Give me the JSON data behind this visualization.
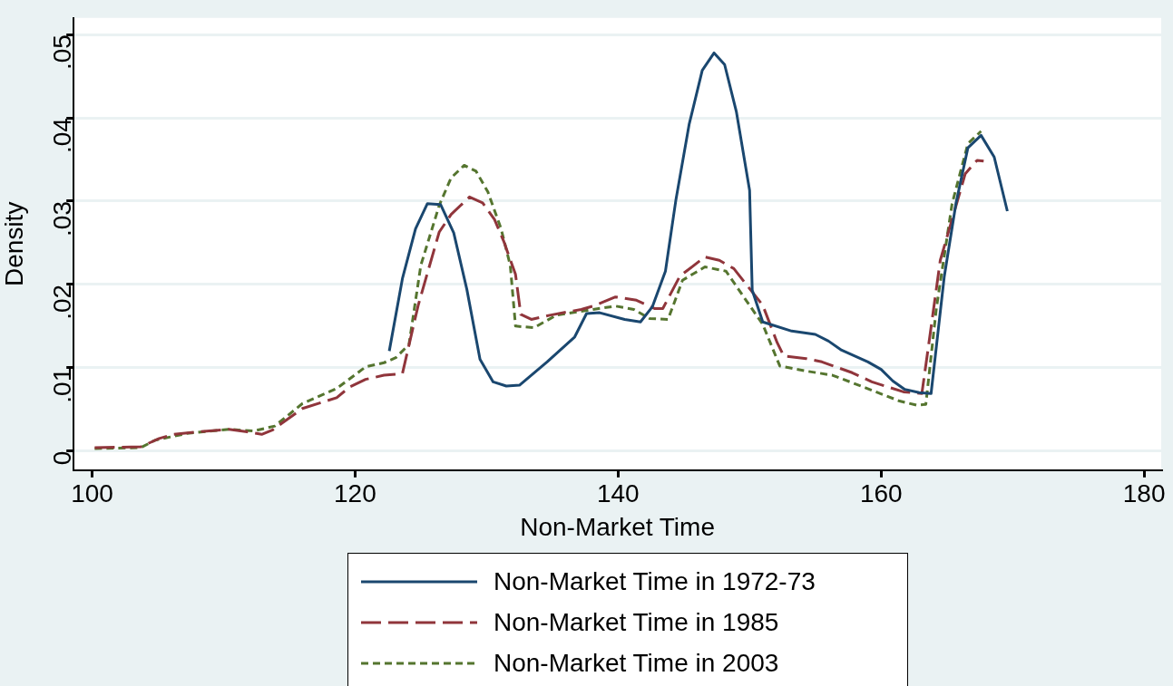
{
  "chart_data": {
    "type": "line",
    "xlabel": "Non-Market Time",
    "ylabel": "Density",
    "xlim": [
      98.6,
      181.3
    ],
    "xticks": [
      100,
      120,
      140,
      160,
      180
    ],
    "ylim": [
      -0.0023,
      0.052
    ],
    "yticks": [
      {
        "value": 0,
        "label": "0"
      },
      {
        "value": 0.01,
        "label": ".01"
      },
      {
        "value": 0.02,
        "label": ".02"
      },
      {
        "value": 0.03,
        "label": ".03"
      },
      {
        "value": 0.04,
        "label": ".04"
      },
      {
        "value": 0.05,
        "label": ".05"
      }
    ],
    "grid": "y",
    "legend": "bottom",
    "marker": "none",
    "series": [
      {
        "name": "Non-Market Time in 1972-73",
        "color": "#1a476f",
        "line_style": "solid",
        "x": [
          122.6,
          123.6,
          124.6,
          125.5,
          126.5,
          127.5,
          128.5,
          129.5,
          130.5,
          131.5,
          132.5,
          134.6,
          136.7,
          137.6,
          138.6,
          140.5,
          141.7,
          142.6,
          143.6,
          144.4,
          145.4,
          146.4,
          147.3,
          148.1,
          149.0,
          150.0,
          150.2,
          151.0,
          153.2,
          155.0,
          156.0,
          157.0,
          159.0,
          160.0,
          160.9,
          161.8,
          162.9,
          163.8,
          164.8,
          165.7,
          166.6,
          167.6,
          168.6,
          169.6
        ],
        "values": [
          0.012,
          0.0207,
          0.0267,
          0.0297,
          0.0296,
          0.0262,
          0.0194,
          0.011,
          0.0083,
          0.0078,
          0.0079,
          0.0107,
          0.0137,
          0.0165,
          0.0166,
          0.0158,
          0.0155,
          0.0173,
          0.0216,
          0.0302,
          0.0392,
          0.0457,
          0.0478,
          0.0464,
          0.0407,
          0.0313,
          0.0193,
          0.0155,
          0.0144,
          0.014,
          0.0132,
          0.0121,
          0.0107,
          0.0098,
          0.0084,
          0.0074,
          0.007,
          0.0069,
          0.0209,
          0.0298,
          0.0364,
          0.0379,
          0.0353,
          0.0288
        ]
      },
      {
        "name": "Non-Market Time in 1985",
        "color": "#90353b",
        "line_style": "dashed",
        "x": [
          100.2,
          103.7,
          105.1,
          106.2,
          108.1,
          110.4,
          111.8,
          112.9,
          113.7,
          116.0,
          118.6,
          119.6,
          120.8,
          122.2,
          123.6,
          124.8,
          126.4,
          127.3,
          128.7,
          129.7,
          130.6,
          131.3,
          132.2,
          132.6,
          133.4,
          134.8,
          137.2,
          138.1,
          139.8,
          141.4,
          142.8,
          143.4,
          144.7,
          146.6,
          147.7,
          148.8,
          151.0,
          152.1,
          152.6,
          154.3,
          155.5,
          157.8,
          159.3,
          161.7,
          163.1,
          163.7,
          164.5,
          166.4,
          167.3,
          167.8
        ],
        "values": [
          0.0004,
          0.0005,
          0.0015,
          0.002,
          0.0023,
          0.0026,
          0.0023,
          0.002,
          0.0025,
          0.0051,
          0.0064,
          0.0077,
          0.0086,
          0.0091,
          0.0093,
          0.0175,
          0.0263,
          0.0284,
          0.0305,
          0.0298,
          0.0278,
          0.0252,
          0.0212,
          0.0164,
          0.0158,
          0.0163,
          0.017,
          0.0174,
          0.0185,
          0.0181,
          0.0171,
          0.0171,
          0.021,
          0.0233,
          0.0229,
          0.0219,
          0.0175,
          0.013,
          0.0114,
          0.0111,
          0.0107,
          0.0094,
          0.0083,
          0.0071,
          0.0069,
          0.0137,
          0.0229,
          0.0333,
          0.0349,
          0.0348
        ]
      },
      {
        "name": "Non-Market Time in 2003",
        "color": "#55752f",
        "line_style": "dotted",
        "x": [
          100.2,
          103.7,
          104.8,
          107.2,
          110.4,
          112.3,
          113.9,
          116.0,
          118.6,
          120.8,
          122.2,
          123.1,
          124.1,
          125.0,
          126.4,
          127.3,
          128.3,
          129.2,
          130.1,
          131.1,
          131.8,
          132.2,
          133.6,
          135.3,
          138.1,
          139.8,
          141.2,
          142.4,
          143.8,
          144.9,
          146.6,
          148.2,
          151.0,
          152.3,
          154.3,
          156.3,
          158.8,
          161.4,
          162.7,
          163.4,
          164.2,
          165.4,
          166.6,
          167.6
        ],
        "values": [
          0.0003,
          0.0004,
          0.0013,
          0.0021,
          0.0026,
          0.0024,
          0.003,
          0.0057,
          0.0075,
          0.0101,
          0.0106,
          0.0112,
          0.0128,
          0.0223,
          0.0295,
          0.0328,
          0.0343,
          0.0336,
          0.0311,
          0.0267,
          0.0223,
          0.015,
          0.0148,
          0.0163,
          0.017,
          0.0174,
          0.017,
          0.0159,
          0.0158,
          0.0205,
          0.0221,
          0.0216,
          0.0152,
          0.0102,
          0.0096,
          0.0091,
          0.0076,
          0.006,
          0.0055,
          0.0056,
          0.0171,
          0.0297,
          0.0369,
          0.0384
        ]
      }
    ]
  }
}
